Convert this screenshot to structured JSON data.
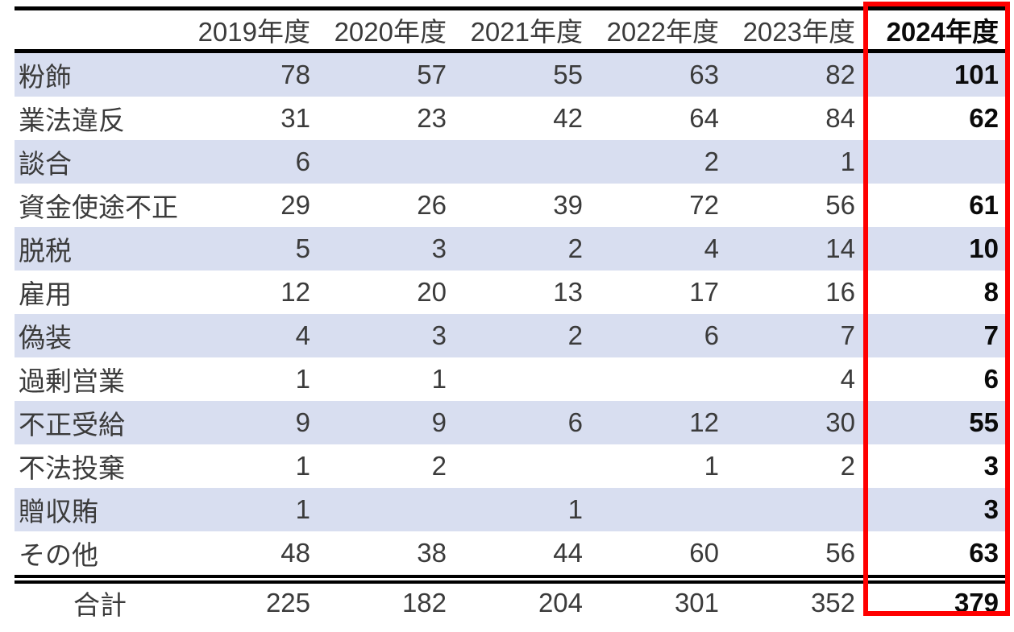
{
  "colors": {
    "row_stripe": "#D8DEF0",
    "highlight_border": "#FF0000",
    "rule": "#000000"
  },
  "table": {
    "corner_label": "",
    "columns": [
      "2019年度",
      "2020年度",
      "2021年度",
      "2022年度",
      "2023年度",
      "2024年度"
    ],
    "highlighted_column": "2024年度",
    "rows": [
      {
        "label": "粉飾",
        "values": [
          "78",
          "57",
          "55",
          "63",
          "82",
          "101"
        ]
      },
      {
        "label": "業法違反",
        "values": [
          "31",
          "23",
          "42",
          "64",
          "84",
          "62"
        ]
      },
      {
        "label": "談合",
        "values": [
          "6",
          "",
          "",
          "2",
          "1",
          ""
        ]
      },
      {
        "label": "資金使途不正",
        "values": [
          "29",
          "26",
          "39",
          "72",
          "56",
          "61"
        ]
      },
      {
        "label": "脱税",
        "values": [
          "5",
          "3",
          "2",
          "4",
          "14",
          "10"
        ]
      },
      {
        "label": "雇用",
        "values": [
          "12",
          "20",
          "13",
          "17",
          "16",
          "8"
        ]
      },
      {
        "label": "偽装",
        "values": [
          "4",
          "3",
          "2",
          "6",
          "7",
          "7"
        ]
      },
      {
        "label": "過剰営業",
        "values": [
          "1",
          "1",
          "",
          "",
          "4",
          "6"
        ]
      },
      {
        "label": "不正受給",
        "values": [
          "9",
          "9",
          "6",
          "12",
          "30",
          "55"
        ]
      },
      {
        "label": "不法投棄",
        "values": [
          "1",
          "2",
          "",
          "1",
          "2",
          "3"
        ]
      },
      {
        "label": "贈収賄",
        "values": [
          "1",
          "",
          "1",
          "",
          "",
          "3"
        ]
      },
      {
        "label": "その他",
        "values": [
          "48",
          "38",
          "44",
          "60",
          "56",
          "63"
        ]
      }
    ],
    "total_row": {
      "label": "合計",
      "values": [
        "225",
        "182",
        "204",
        "301",
        "352",
        "379"
      ]
    }
  },
  "chart_data": {
    "type": "table",
    "title": "",
    "categories": [
      "2019年度",
      "2020年度",
      "2021年度",
      "2022年度",
      "2023年度",
      "2024年度"
    ],
    "series": [
      {
        "name": "粉飾",
        "values": [
          78,
          57,
          55,
          63,
          82,
          101
        ]
      },
      {
        "name": "業法違反",
        "values": [
          31,
          23,
          42,
          64,
          84,
          62
        ]
      },
      {
        "name": "談合",
        "values": [
          6,
          null,
          null,
          2,
          1,
          null
        ]
      },
      {
        "name": "資金使途不正",
        "values": [
          29,
          26,
          39,
          72,
          56,
          61
        ]
      },
      {
        "name": "脱税",
        "values": [
          5,
          3,
          2,
          4,
          14,
          10
        ]
      },
      {
        "name": "雇用",
        "values": [
          12,
          20,
          13,
          17,
          16,
          8
        ]
      },
      {
        "name": "偽装",
        "values": [
          4,
          3,
          2,
          6,
          7,
          7
        ]
      },
      {
        "name": "過剰営業",
        "values": [
          1,
          1,
          null,
          null,
          4,
          6
        ]
      },
      {
        "name": "不正受給",
        "values": [
          9,
          9,
          6,
          12,
          30,
          55
        ]
      },
      {
        "name": "不法投棄",
        "values": [
          1,
          2,
          null,
          1,
          2,
          3
        ]
      },
      {
        "name": "贈収賄",
        "values": [
          1,
          null,
          1,
          null,
          null,
          3
        ]
      },
      {
        "name": "その他",
        "values": [
          48,
          38,
          44,
          60,
          56,
          63
        ]
      }
    ],
    "totals": {
      "name": "合計",
      "values": [
        225,
        182,
        204,
        301,
        352,
        379
      ]
    },
    "highlighted_category": "2024年度",
    "layout": {
      "row_banding": true,
      "double_rule_above_totals": true,
      "red_box_on_last_column": true
    }
  }
}
